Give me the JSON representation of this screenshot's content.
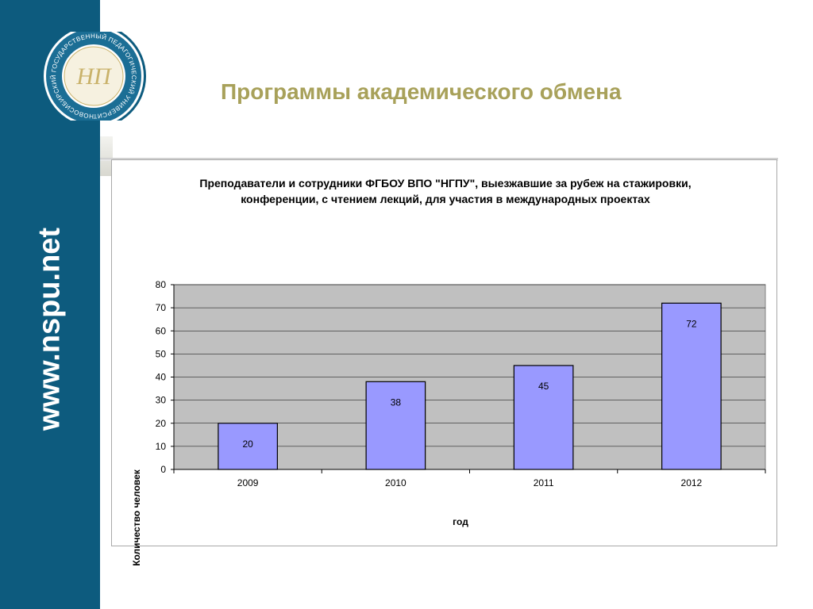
{
  "slide": {
    "title": "Программы академического обмена",
    "site_url": "www.nspu.net",
    "accent_color": "#a8a15a",
    "sidebar_color": "#0d5b7e"
  },
  "logo": {
    "ring_text": "НОВОСИБИРСКИЙ ГОСУДАРСТВЕННЫЙ ПЕДАГОГИЧЕСКИЙ УНИВЕРСИТЕТ",
    "monogram": "НП"
  },
  "chart_data": {
    "type": "bar",
    "title": "Преподаватели и сотрудники ФГБОУ ВПО \"НГПУ\", выезжавшие за рубеж на стажировки, конференции, с чтением лекций, для участия в международных проектах",
    "xlabel": "год",
    "ylabel": "Количество человек",
    "categories": [
      "2009",
      "2010",
      "2011",
      "2012"
    ],
    "values": [
      20,
      38,
      45,
      72
    ],
    "ylim": [
      0,
      80
    ],
    "yticks": [
      0,
      10,
      20,
      30,
      40,
      50,
      60,
      70,
      80
    ],
    "grid": true,
    "bar_color": "#9999ff",
    "plot_bg": "#c0c0c0"
  }
}
